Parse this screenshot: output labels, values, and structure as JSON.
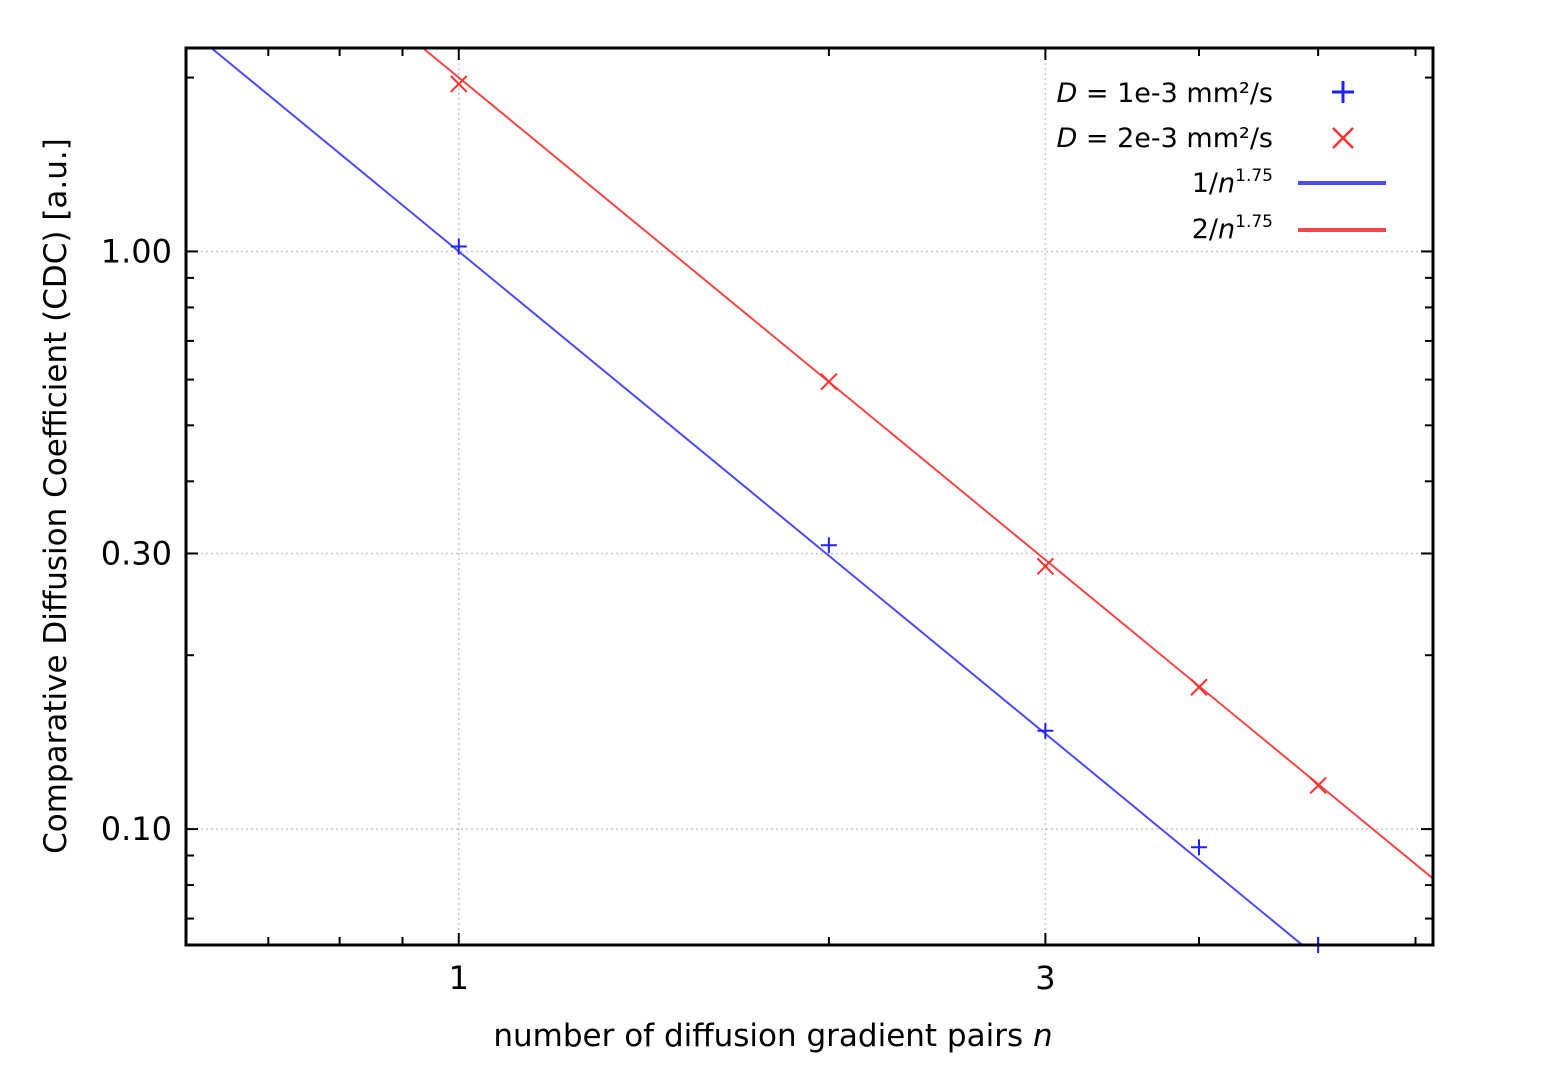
{
  "chart_data": {
    "type": "line",
    "xscale": "log",
    "yscale": "log",
    "xlabel": "number of diffusion gradient pairs",
    "xlabel_var": "n",
    "ylabel": "Comparative Diffusion Coefficient (CDC) [a.u.]",
    "xlim": [
      0.6,
      6.2
    ],
    "ylim": [
      0.063,
      2.25
    ],
    "x_ticks": [
      1,
      3
    ],
    "x_tick_labels": [
      "1",
      "3"
    ],
    "y_ticks": [
      0.1,
      0.3,
      1.0
    ],
    "y_tick_labels": [
      "0.10",
      "0.30",
      "1.00"
    ],
    "grid": "dotted at labeled ticks",
    "legend_position": "top-right",
    "series": [
      {
        "name": "D = 1e-3 mm²/s",
        "name_var": "D",
        "name_rest": " = 1e-3 mm²/s",
        "kind": "points",
        "marker": "plus",
        "color": "#2020ff",
        "x": [
          1,
          2,
          3,
          4,
          5
        ],
        "y": [
          1.02,
          0.31,
          0.148,
          0.093,
          0.063
        ]
      },
      {
        "name": "D = 2e-3 mm²/s",
        "name_var": "D",
        "name_rest": " = 2e-3 mm²/s",
        "kind": "points",
        "marker": "cross",
        "color": "#ff3030",
        "x": [
          1,
          2,
          3,
          4,
          5
        ],
        "y": [
          1.95,
          0.595,
          0.285,
          0.176,
          0.119
        ]
      },
      {
        "name": "1/n^1.75",
        "name_pre": "1/",
        "name_var": "n",
        "name_exp": "1.75",
        "kind": "line",
        "color": "#4c4cf0",
        "coefficient": 1,
        "exponent": -1.75
      },
      {
        "name": "2/n^1.75",
        "name_pre": "2/",
        "name_var": "n",
        "name_exp": "1.75",
        "kind": "line",
        "color": "#f04848",
        "coefficient": 2,
        "exponent": -1.75
      }
    ]
  }
}
